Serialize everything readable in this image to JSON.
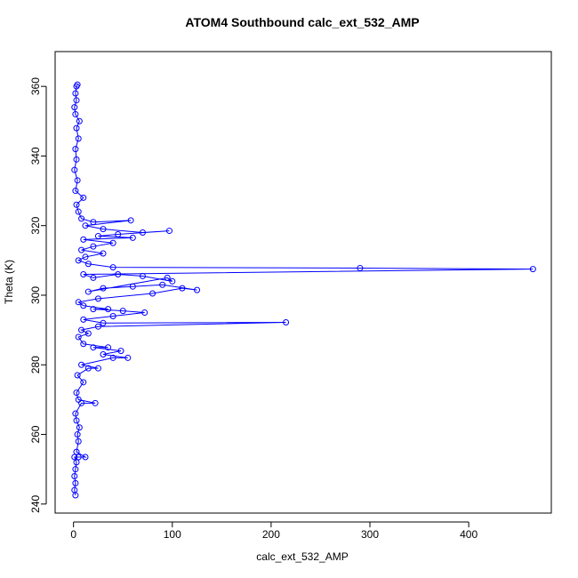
{
  "chart_data": {
    "type": "line",
    "markers": true,
    "title": "ATOM4 Southbound calc_ext_532_AMP",
    "x_label": "calc_ext_532_AMP",
    "y_label": "Theta (K)",
    "color": "#0000ff",
    "x": [
      2,
      1,
      2,
      1,
      2,
      3,
      1,
      5,
      12,
      3,
      5,
      4,
      6,
      3,
      2,
      8,
      22,
      5,
      3,
      10,
      4,
      15,
      25,
      8,
      40,
      55,
      30,
      48,
      20,
      35,
      10,
      5,
      15,
      8,
      25,
      215,
      30,
      10,
      40,
      72,
      50,
      20,
      35,
      10,
      5,
      25,
      80,
      110,
      125,
      90,
      60,
      30,
      15,
      95,
      100,
      70,
      45,
      20,
      10,
      465,
      290,
      40,
      15,
      5,
      12,
      30,
      8,
      20,
      40,
      10,
      60,
      25,
      45,
      97,
      70,
      30,
      12,
      58,
      20,
      8,
      5,
      3,
      10,
      2,
      4,
      1,
      3,
      2,
      5,
      3,
      6,
      2,
      1,
      3,
      2,
      3,
      4
    ],
    "values": [
      242.5,
      244,
      246,
      248,
      250,
      252,
      253.5,
      253.5,
      253.5,
      255,
      258,
      260,
      262,
      264,
      266,
      269,
      269,
      270,
      272,
      275,
      277,
      279,
      279,
      280,
      282,
      282,
      283,
      284,
      285,
      285,
      286,
      288,
      289,
      290,
      291,
      292.2,
      292,
      293,
      294,
      295,
      295.5,
      296,
      296,
      297,
      298,
      299,
      300.5,
      302,
      301.5,
      303,
      302.5,
      302,
      301,
      305,
      304,
      305.5,
      306,
      305,
      306,
      307.5,
      307.8,
      308,
      309,
      310,
      311,
      312,
      313,
      314,
      315,
      316,
      316.5,
      317,
      317.5,
      318.5,
      318,
      319,
      320,
      321.5,
      321,
      322,
      324,
      326,
      328,
      330,
      333,
      336,
      339,
      342,
      345,
      348,
      350,
      352,
      354,
      356,
      358,
      360,
      360.5
    ],
    "xlim": [
      -18.6,
      483.6
    ],
    "ylim": [
      237.4,
      370
    ],
    "xticks": [
      0,
      100,
      200,
      300,
      400
    ],
    "yticks": [
      240,
      260,
      280,
      300,
      320,
      340,
      360
    ]
  }
}
